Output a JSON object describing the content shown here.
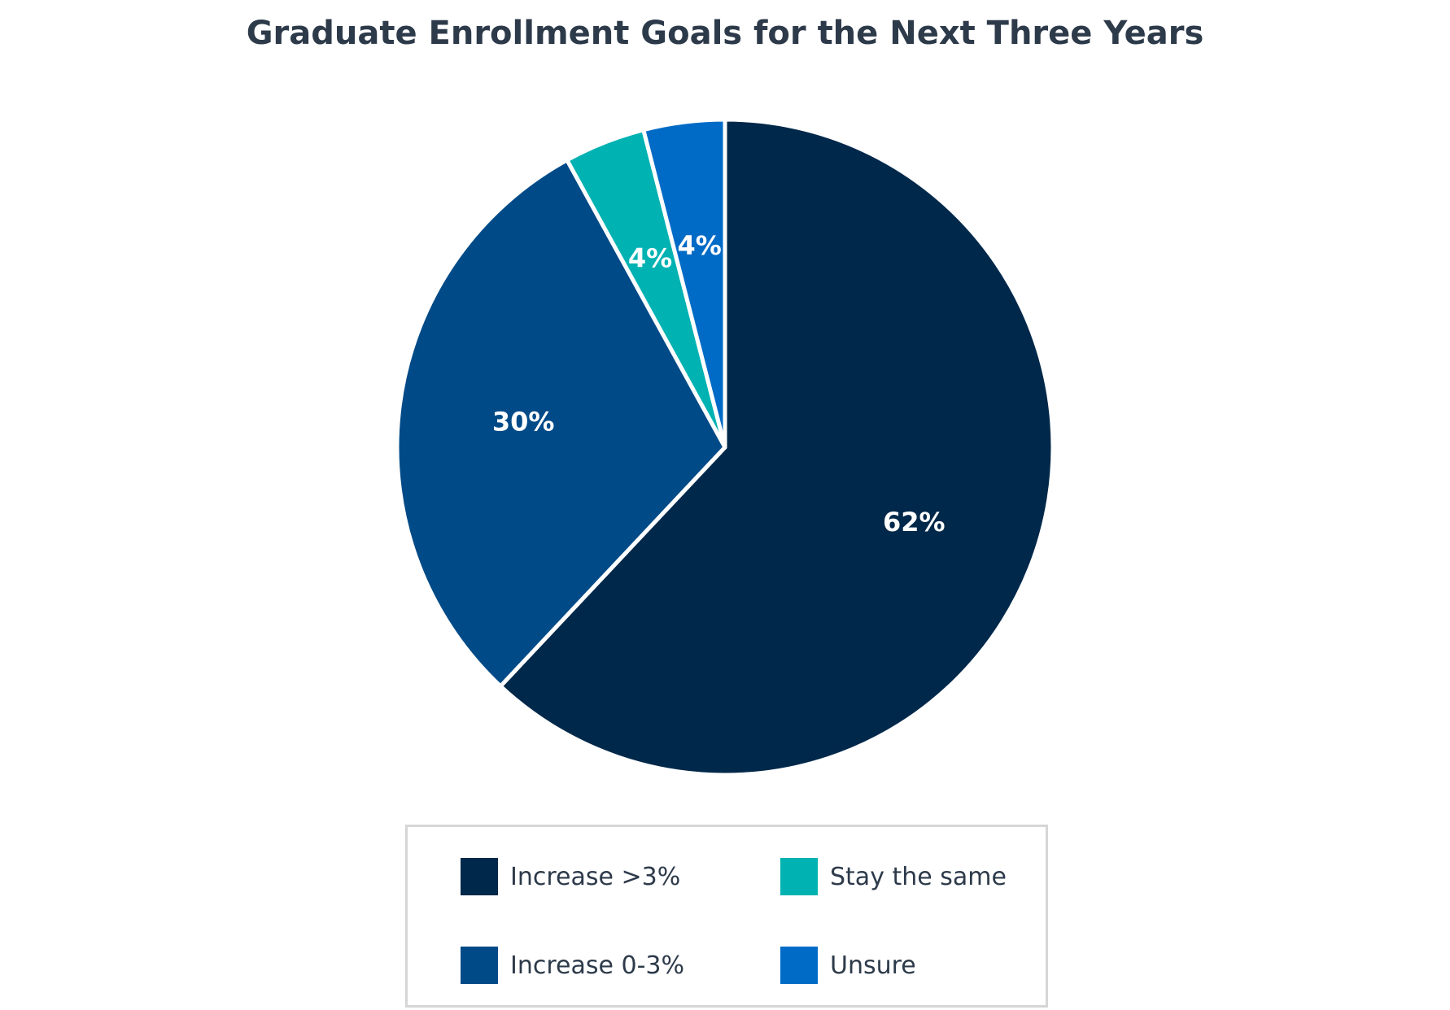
{
  "chart_data": {
    "type": "pie",
    "title": "Graduate Enrollment Goals for the Next Three Years",
    "categories": [
      "Increase >3%",
      "Increase 0-3%",
      "Stay the same",
      "Unsure"
    ],
    "values": [
      62,
      30,
      4,
      4
    ],
    "value_labels": [
      "62%",
      "30%",
      "4%",
      "4%"
    ],
    "colors": [
      "#00284a",
      "#004a87",
      "#00b2b2",
      "#006bc6"
    ],
    "start_angle_deg": 0,
    "direction": "clockwise",
    "slice_border_color": "#ffffff",
    "legend_position": "bottom-center",
    "legend": [
      {
        "label": "Increase >3%",
        "color": "#00284a"
      },
      {
        "label": "Stay the same",
        "color": "#00b2b2"
      },
      {
        "label": "Increase 0-3%",
        "color": "#004a87"
      },
      {
        "label": "Unsure",
        "color": "#006bc6"
      }
    ]
  }
}
